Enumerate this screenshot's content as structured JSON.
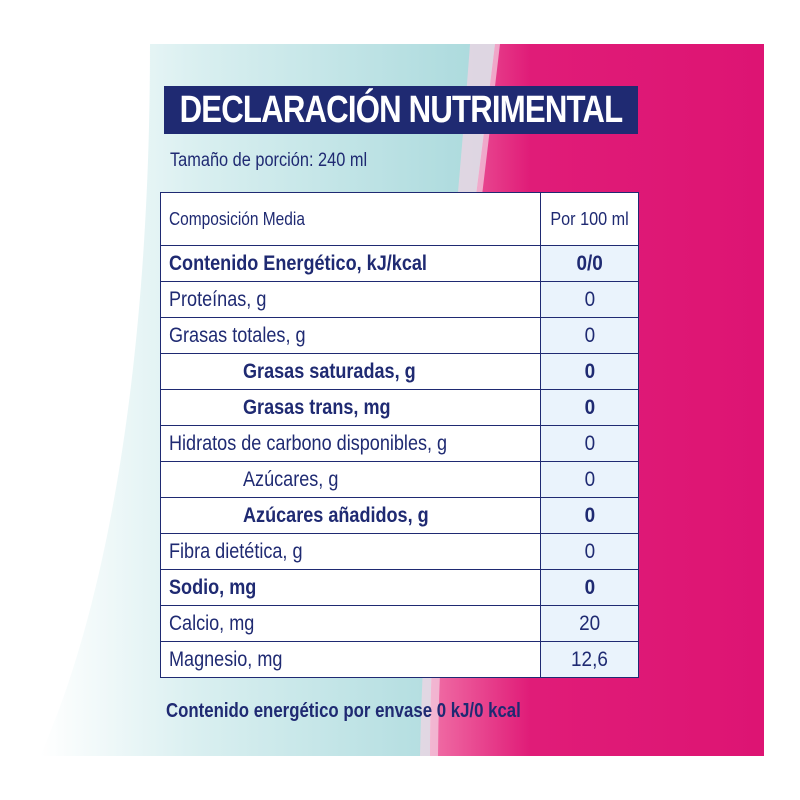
{
  "title": "DECLARACIÓN NUTRIMENTAL",
  "serving_size": "Tamaño de porción: 240 ml",
  "table": {
    "header": {
      "name": "Composición Media",
      "value": "Por 100 ml"
    },
    "rows": [
      {
        "name": "Contenido Energético, kJ/kcal",
        "value": "0/0"
      },
      {
        "name": "Proteínas, g",
        "value": "0"
      },
      {
        "name": "Grasas totales, g",
        "value": "0"
      },
      {
        "name": "Grasas saturadas, g",
        "value": "0"
      },
      {
        "name": "Grasas trans, mg",
        "value": "0"
      },
      {
        "name": "Hidratos de carbono disponibles, g",
        "value": "0"
      },
      {
        "name": "Azúcares, g",
        "value": "0"
      },
      {
        "name": "Azúcares añadidos, g",
        "value": "0"
      },
      {
        "name": "Fibra dietética, g",
        "value": "0"
      },
      {
        "name": "Sodio, mg",
        "value": "0"
      },
      {
        "name": "Calcio, mg",
        "value": "20"
      },
      {
        "name": "Magnesio, mg",
        "value": "12,6"
      }
    ]
  },
  "footer": "Contenido energético por envase 0 kJ/0 kcal",
  "colors": {
    "navy": "#1f2a72",
    "magenta": "#e01c78",
    "teal": "#bfe3e4",
    "value_column": "#eaf3fc"
  }
}
